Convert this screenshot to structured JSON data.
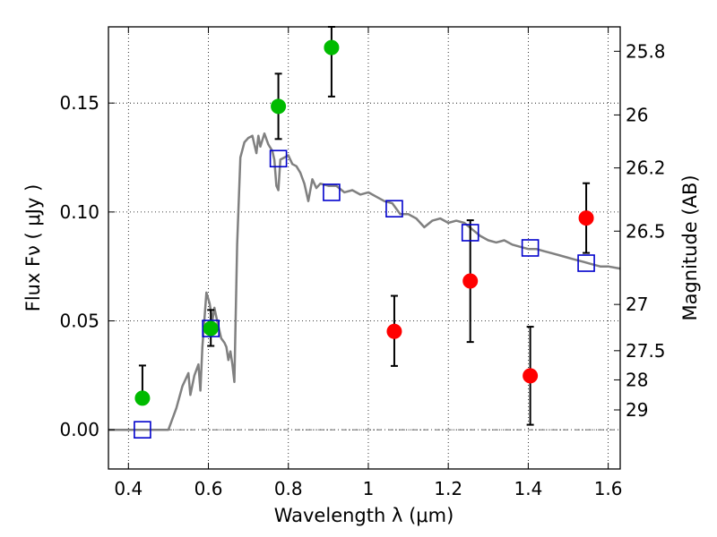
{
  "chart_data": {
    "type": "scatter",
    "xlabel": "Wavelength  λ (μm)",
    "ylabel": "Flux  Fν  ( μJy )",
    "ylabel_right": "Magnitude (AB)",
    "xlim": [
      0.35,
      1.63
    ],
    "ylim": [
      -0.018,
      0.185
    ],
    "grid": true,
    "x_ticks": [
      {
        "value": 0.4,
        "label": "0.4"
      },
      {
        "value": 0.6,
        "label": "0.6"
      },
      {
        "value": 0.8,
        "label": "0.8"
      },
      {
        "value": 1.0,
        "label": "1"
      },
      {
        "value": 1.2,
        "label": "1.2"
      },
      {
        "value": 1.4,
        "label": "1.4"
      },
      {
        "value": 1.6,
        "label": "1.6"
      }
    ],
    "y_ticks": [
      {
        "value": 0.0,
        "label": "0.00"
      },
      {
        "value": 0.05,
        "label": "0.05"
      },
      {
        "value": 0.1,
        "label": "0.10"
      },
      {
        "value": 0.15,
        "label": "0.15"
      }
    ],
    "right_ticks": [
      {
        "mag": 25.8,
        "label": "25.8"
      },
      {
        "mag": 26,
        "label": "26"
      },
      {
        "mag": 26.2,
        "label": "26.2"
      },
      {
        "mag": 26.5,
        "label": "26.5"
      },
      {
        "mag": 27,
        "label": "27"
      },
      {
        "mag": 27.5,
        "label": "27.5"
      },
      {
        "mag": 28,
        "label": "28"
      },
      {
        "mag": 29,
        "label": "29"
      }
    ],
    "zero_line": 0.0,
    "colors": {
      "green": "#00bb00",
      "red": "#ff0000",
      "model_box": "#0000cc",
      "sed": "#808080"
    },
    "series": [
      {
        "marker": "circle",
        "color": "#00bb00",
        "points": [
          {
            "x": 0.435,
            "y": 0.0145,
            "err_lo": 0.0145,
            "err_hi": 0.0295
          },
          {
            "x": 0.606,
            "y": 0.0465,
            "err_lo": 0.0385,
            "err_hi": 0.055
          },
          {
            "x": 0.775,
            "y": 0.1485,
            "err_lo": 0.1335,
            "err_hi": 0.1635
          },
          {
            "x": 0.908,
            "y": 0.1755,
            "err_lo": 0.153,
            "err_hi": 0.185
          }
        ]
      },
      {
        "marker": "circle",
        "color": "#ff0000",
        "points": [
          {
            "x": 1.065,
            "y": 0.0452,
            "err_lo": 0.0293,
            "err_hi": 0.0615
          },
          {
            "x": 1.255,
            "y": 0.0683,
            "err_lo": 0.0403,
            "err_hi": 0.0962
          },
          {
            "x": 1.405,
            "y": 0.0248,
            "err_lo": 0.0023,
            "err_hi": 0.0473
          },
          {
            "x": 1.545,
            "y": 0.0972,
            "err_lo": 0.0812,
            "err_hi": 0.1132
          }
        ]
      },
      {
        "marker": "square",
        "color": "#0000cc",
        "points": [
          {
            "x": 0.435,
            "y": 0.0
          },
          {
            "x": 0.606,
            "y": 0.0465
          },
          {
            "x": 0.775,
            "y": 0.1245
          },
          {
            "x": 0.908,
            "y": 0.109
          },
          {
            "x": 1.065,
            "y": 0.1015
          },
          {
            "x": 1.255,
            "y": 0.0905
          },
          {
            "x": 1.405,
            "y": 0.0835
          },
          {
            "x": 1.545,
            "y": 0.0765
          }
        ]
      },
      {
        "marker": "line",
        "color": "#808080",
        "points": [
          [
            0.35,
            0.0
          ],
          [
            0.5,
            0.0
          ],
          [
            0.52,
            0.01
          ],
          [
            0.535,
            0.02
          ],
          [
            0.545,
            0.024
          ],
          [
            0.55,
            0.026
          ],
          [
            0.555,
            0.016
          ],
          [
            0.565,
            0.025
          ],
          [
            0.575,
            0.03
          ],
          [
            0.58,
            0.018
          ],
          [
            0.585,
            0.038
          ],
          [
            0.595,
            0.063
          ],
          [
            0.603,
            0.058
          ],
          [
            0.61,
            0.05
          ],
          [
            0.615,
            0.056
          ],
          [
            0.622,
            0.05
          ],
          [
            0.632,
            0.042
          ],
          [
            0.64,
            0.04
          ],
          [
            0.645,
            0.038
          ],
          [
            0.65,
            0.032
          ],
          [
            0.655,
            0.036
          ],
          [
            0.66,
            0.03
          ],
          [
            0.665,
            0.022
          ],
          [
            0.672,
            0.085
          ],
          [
            0.68,
            0.125
          ],
          [
            0.69,
            0.132
          ],
          [
            0.7,
            0.134
          ],
          [
            0.71,
            0.135
          ],
          [
            0.715,
            0.131
          ],
          [
            0.72,
            0.127
          ],
          [
            0.725,
            0.135
          ],
          [
            0.73,
            0.13
          ],
          [
            0.74,
            0.136
          ],
          [
            0.75,
            0.131
          ],
          [
            0.76,
            0.128
          ],
          [
            0.765,
            0.124
          ],
          [
            0.77,
            0.112
          ],
          [
            0.775,
            0.11
          ],
          [
            0.78,
            0.124
          ],
          [
            0.79,
            0.125
          ],
          [
            0.8,
            0.126
          ],
          [
            0.81,
            0.122
          ],
          [
            0.82,
            0.121
          ],
          [
            0.83,
            0.118
          ],
          [
            0.84,
            0.113
          ],
          [
            0.85,
            0.105
          ],
          [
            0.86,
            0.115
          ],
          [
            0.87,
            0.111
          ],
          [
            0.88,
            0.113
          ],
          [
            0.9,
            0.112
          ],
          [
            0.92,
            0.112
          ],
          [
            0.94,
            0.109
          ],
          [
            0.96,
            0.11
          ],
          [
            0.98,
            0.108
          ],
          [
            1.0,
            0.109
          ],
          [
            1.02,
            0.107
          ],
          [
            1.04,
            0.105
          ],
          [
            1.06,
            0.104
          ],
          [
            1.08,
            0.099
          ],
          [
            1.1,
            0.099
          ],
          [
            1.12,
            0.097
          ],
          [
            1.14,
            0.093
          ],
          [
            1.16,
            0.096
          ],
          [
            1.18,
            0.097
          ],
          [
            1.2,
            0.095
          ],
          [
            1.22,
            0.096
          ],
          [
            1.24,
            0.095
          ],
          [
            1.26,
            0.092
          ],
          [
            1.28,
            0.089
          ],
          [
            1.3,
            0.087
          ],
          [
            1.32,
            0.086
          ],
          [
            1.34,
            0.087
          ],
          [
            1.36,
            0.085
          ],
          [
            1.38,
            0.084
          ],
          [
            1.4,
            0.083
          ],
          [
            1.42,
            0.083
          ],
          [
            1.44,
            0.082
          ],
          [
            1.46,
            0.081
          ],
          [
            1.48,
            0.08
          ],
          [
            1.5,
            0.079
          ],
          [
            1.52,
            0.078
          ],
          [
            1.54,
            0.077
          ],
          [
            1.56,
            0.076
          ],
          [
            1.58,
            0.075
          ],
          [
            1.6,
            0.075
          ],
          [
            1.63,
            0.074
          ]
        ]
      }
    ]
  }
}
